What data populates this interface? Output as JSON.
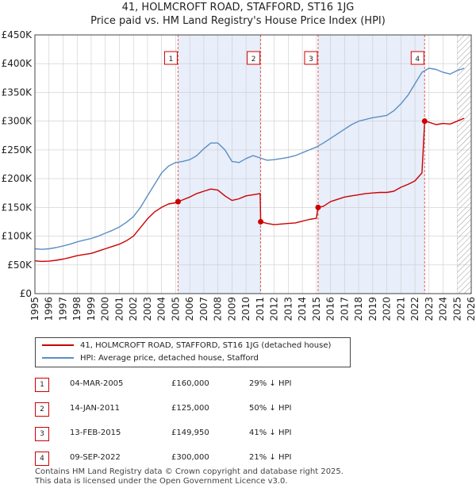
{
  "title_line1": "41, HOLMCROFT ROAD, STAFFORD, ST16 1JG",
  "title_line2": "Price paid vs. HM Land Registry's House Price Index (HPI)",
  "colors": {
    "price_paid": "#cc0000",
    "hpi": "#5b8ec2",
    "shade": "#e8eefa",
    "grid": "#cccccc",
    "marker_line": "#e06060"
  },
  "chart_data": {
    "type": "line",
    "title": "41, HOLMCROFT ROAD, STAFFORD, ST16 1JG",
    "subtitle": "Price paid vs. HM Land Registry's House Price Index (HPI)",
    "xlabel": "",
    "ylabel": "",
    "xlim": [
      1995,
      2026
    ],
    "ylim": [
      0,
      450000
    ],
    "grid": true,
    "x_ticks": [
      "1995",
      "1996",
      "1997",
      "1998",
      "1999",
      "2000",
      "2001",
      "2002",
      "2003",
      "2004",
      "2005",
      "2006",
      "2007",
      "2008",
      "2009",
      "2010",
      "2011",
      "2012",
      "2013",
      "2014",
      "2015",
      "2016",
      "2017",
      "2018",
      "2019",
      "2020",
      "2021",
      "2022",
      "2023",
      "2024",
      "2025",
      "2026"
    ],
    "y_ticks": [
      {
        "value": 0,
        "label": "£0"
      },
      {
        "value": 50000,
        "label": "£50K"
      },
      {
        "value": 100000,
        "label": "£100K"
      },
      {
        "value": 150000,
        "label": "£150K"
      },
      {
        "value": 200000,
        "label": "£200K"
      },
      {
        "value": 250000,
        "label": "£250K"
      },
      {
        "value": 300000,
        "label": "£300K"
      },
      {
        "value": 350000,
        "label": "£350K"
      },
      {
        "value": 400000,
        "label": "£400K"
      },
      {
        "value": 450000,
        "label": "£450K"
      }
    ],
    "shaded_periods": [
      [
        2005.17,
        2011.04
      ],
      [
        2015.12,
        2022.69
      ]
    ],
    "hatched_from": 2025.0,
    "series": [
      {
        "name": "41, HOLMCROFT ROAD, STAFFORD, ST16 1JG (detached house)",
        "color": "#cc0000",
        "x": [
          1995.0,
          1995.5,
          1996.0,
          1996.5,
          1997.0,
          1997.5,
          1998.0,
          1998.5,
          1999.0,
          1999.5,
          2000.0,
          2000.5,
          2001.0,
          2001.5,
          2002.0,
          2002.5,
          2003.0,
          2003.5,
          2004.0,
          2004.5,
          2005.0,
          2005.17,
          2005.5,
          2006.0,
          2006.5,
          2007.0,
          2007.5,
          2008.0,
          2008.5,
          2009.0,
          2009.5,
          2010.0,
          2010.5,
          2011.0,
          2011.04,
          2011.5,
          2012.0,
          2012.5,
          2013.0,
          2013.5,
          2014.0,
          2014.5,
          2015.0,
          2015.12,
          2015.5,
          2016.0,
          2016.5,
          2017.0,
          2017.5,
          2018.0,
          2018.5,
          2019.0,
          2019.5,
          2020.0,
          2020.5,
          2021.0,
          2021.5,
          2022.0,
          2022.5,
          2022.69,
          2023.0,
          2023.5,
          2024.0,
          2024.5,
          2025.0,
          2025.5
        ],
        "values": [
          57000,
          56000,
          56500,
          58000,
          60000,
          63000,
          66000,
          68000,
          70000,
          74000,
          78000,
          82000,
          86000,
          92000,
          100000,
          115000,
          130000,
          142000,
          150000,
          156000,
          158000,
          160000,
          163000,
          168000,
          174000,
          178000,
          182000,
          180000,
          170000,
          162000,
          165000,
          170000,
          172000,
          174000,
          125000,
          122000,
          120000,
          121000,
          122000,
          123000,
          126000,
          129000,
          131000,
          149950,
          152000,
          160000,
          164000,
          168000,
          170000,
          172000,
          174000,
          175000,
          176000,
          176000,
          178000,
          185000,
          190000,
          196000,
          210000,
          300000,
          298000,
          294000,
          296000,
          295000,
          300000,
          305000
        ]
      },
      {
        "name": "HPI: Average price, detached house, Stafford",
        "color": "#5b8ec2",
        "x": [
          1995.0,
          1995.5,
          1996.0,
          1996.5,
          1997.0,
          1997.5,
          1998.0,
          1998.5,
          1999.0,
          1999.5,
          2000.0,
          2000.5,
          2001.0,
          2001.5,
          2002.0,
          2002.5,
          2003.0,
          2003.5,
          2004.0,
          2004.5,
          2005.0,
          2005.5,
          2006.0,
          2006.5,
          2007.0,
          2007.5,
          2008.0,
          2008.5,
          2009.0,
          2009.5,
          2010.0,
          2010.5,
          2011.0,
          2011.5,
          2012.0,
          2012.5,
          2013.0,
          2013.5,
          2014.0,
          2014.5,
          2015.0,
          2015.5,
          2016.0,
          2016.5,
          2017.0,
          2017.5,
          2018.0,
          2018.5,
          2019.0,
          2019.5,
          2020.0,
          2020.5,
          2021.0,
          2021.5,
          2022.0,
          2022.5,
          2023.0,
          2023.5,
          2024.0,
          2024.5,
          2025.0,
          2025.5
        ],
        "values": [
          78000,
          77000,
          78000,
          80000,
          83000,
          86000,
          90000,
          93000,
          96000,
          100000,
          105000,
          110000,
          116000,
          124000,
          134000,
          150000,
          170000,
          190000,
          210000,
          222000,
          228000,
          230000,
          233000,
          240000,
          252000,
          262000,
          262000,
          250000,
          230000,
          228000,
          235000,
          240000,
          236000,
          232000,
          233000,
          235000,
          237000,
          240000,
          245000,
          250000,
          255000,
          262000,
          270000,
          278000,
          286000,
          294000,
          300000,
          303000,
          306000,
          308000,
          310000,
          318000,
          330000,
          345000,
          365000,
          385000,
          392000,
          390000,
          385000,
          382000,
          388000,
          392000
        ]
      }
    ],
    "annotations": [
      {
        "label": "1",
        "x": 2005.17,
        "y": 160000
      },
      {
        "label": "2",
        "x": 2011.04,
        "y": 125000
      },
      {
        "label": "3",
        "x": 2015.12,
        "y": 149950
      },
      {
        "label": "4",
        "x": 2022.69,
        "y": 300000
      }
    ],
    "legend_position": "bottom"
  },
  "legend": {
    "price_paid_label": "41, HOLMCROFT ROAD, STAFFORD, ST16 1JG (detached house)",
    "hpi_label": "HPI: Average price, detached house, Stafford"
  },
  "sales": [
    {
      "num": "1",
      "date": "04-MAR-2005",
      "price": "£160,000",
      "hpi": "29% ↓ HPI"
    },
    {
      "num": "2",
      "date": "14-JAN-2011",
      "price": "£125,000",
      "hpi": "50% ↓ HPI"
    },
    {
      "num": "3",
      "date": "13-FEB-2015",
      "price": "£149,950",
      "hpi": "41% ↓ HPI"
    },
    {
      "num": "4",
      "date": "09-SEP-2022",
      "price": "£300,000",
      "hpi": "21% ↓ HPI"
    }
  ],
  "footer": {
    "line1": "Contains HM Land Registry data © Crown copyright and database right 2025.",
    "line2": "This data is licensed under the Open Government Licence v3.0."
  }
}
